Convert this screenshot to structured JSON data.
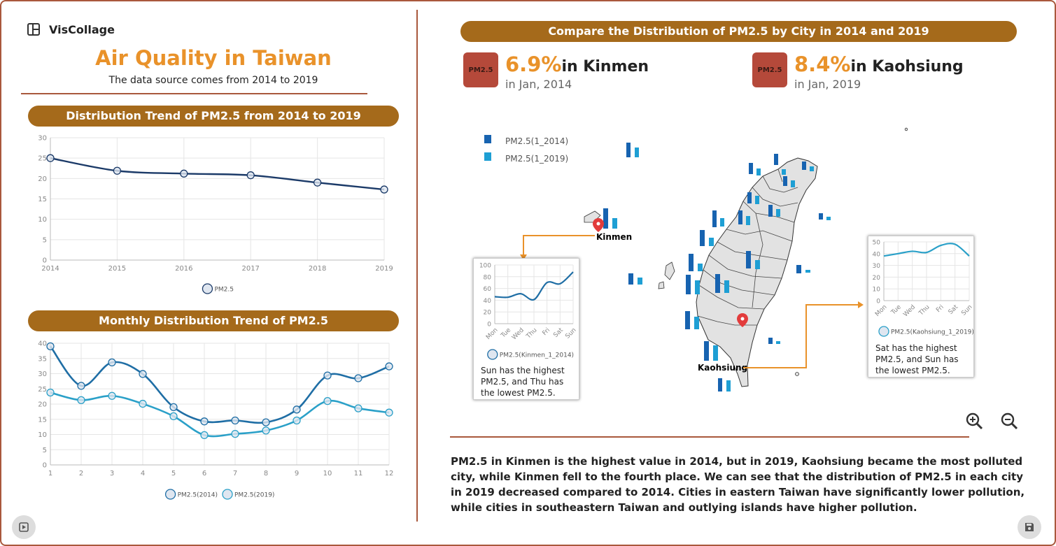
{
  "app": {
    "name": "VisCollage"
  },
  "header": {
    "title": "Air Quality in Taiwan",
    "subtitle": "The data source comes from 2014 to 2019"
  },
  "panels": {
    "trend_title": "Distribution Trend of PM2.5 from 2014 to 2019",
    "monthly_title": "Monthly Distribution Trend of PM2.5",
    "compare_title": "Compare the Distribution of PM2.5 by City in 2014 and 2019"
  },
  "chart_data": [
    {
      "type": "line",
      "x": [
        "2014",
        "2015",
        "2016",
        "2017",
        "2018",
        "2019"
      ],
      "series": [
        {
          "name": "PM2.5",
          "values": [
            25.0,
            21.9,
            21.2,
            20.8,
            19.0,
            17.3
          ],
          "color": "#1b3a68"
        }
      ],
      "ylim": [
        0,
        30
      ],
      "yticks": [
        "0",
        "5",
        "10",
        "15",
        "20",
        "25",
        "30"
      ],
      "grid": true,
      "legend": "bottom"
    },
    {
      "type": "line",
      "x": [
        "1",
        "2",
        "3",
        "4",
        "5",
        "6",
        "7",
        "8",
        "9",
        "10",
        "11",
        "12"
      ],
      "series": [
        {
          "name": "PM2.5(2014)",
          "values": [
            39.0,
            26.0,
            33.7,
            29.9,
            19.0,
            14.3,
            14.6,
            14.0,
            18.2,
            29.4,
            28.5,
            32.4
          ],
          "color": "#1f6ea5"
        },
        {
          "name": "PM2.5(2019)",
          "values": [
            23.8,
            21.3,
            22.7,
            20.1,
            16.0,
            9.8,
            10.2,
            11.3,
            14.6,
            21.0,
            18.6,
            17.2
          ],
          "color": "#2aa0c8"
        }
      ],
      "ylim": [
        0,
        40
      ],
      "yticks": [
        "0",
        "5",
        "10",
        "15",
        "20",
        "25",
        "30",
        "35",
        "40"
      ],
      "grid": true,
      "legend": "bottom"
    },
    {
      "type": "line",
      "x": [
        "Mon",
        "Tue",
        "Wed",
        "Thu",
        "Fri",
        "Sat",
        "Sun"
      ],
      "series": [
        {
          "name": "PM2.5(Kinmen_1_2014)",
          "values": [
            46,
            45,
            51,
            41,
            70,
            68,
            88
          ],
          "color": "#1f6ea5"
        }
      ],
      "ylim": [
        0,
        100
      ],
      "yticks": [
        "0",
        "20",
        "40",
        "60",
        "80",
        "100"
      ],
      "grid": true,
      "legend": "bottom"
    },
    {
      "type": "line",
      "x": [
        "Mon",
        "Tue",
        "Wed",
        "Thu",
        "Fri",
        "Sat",
        "Sun"
      ],
      "series": [
        {
          "name": "PM2.5(Kaohsiung_1_2019)",
          "values": [
            38,
            40,
            42,
            41,
            47,
            48,
            38
          ],
          "color": "#2aa0c8"
        }
      ],
      "ylim": [
        0,
        50
      ],
      "yticks": [
        "0",
        "10",
        "20",
        "30",
        "40",
        "50"
      ],
      "grid": true,
      "legend": "bottom"
    },
    {
      "type": "bar",
      "series": [
        {
          "name": "PM2.5(1_2014)",
          "color": "#1763b0"
        },
        {
          "name": "PM2.5(1_2019)",
          "color": "#1e9fd4"
        }
      ],
      "legend": "top-left"
    }
  ],
  "stats": [
    {
      "value": "6.9%",
      "city": "in Kinmen",
      "when": "in Jan, 2014",
      "icon": "pm25-icon",
      "icon_label": "PM2.5"
    },
    {
      "value": "8.4%",
      "city": "in Kaohsiung",
      "when": "in Jan, 2019",
      "icon": "pm25-icon",
      "icon_label": "PM2.5"
    }
  ],
  "map": {
    "markers": [
      "Kinmen",
      "Kaohsiung"
    ],
    "notes": {
      "kinmen": [
        "Sun has the highest",
        "PM2.5, and Thu has",
        "the lowest PM2.5."
      ],
      "kaohsiung": [
        "Sat has the highest",
        "PM2.5, and Sun has",
        "the lowest PM2.5."
      ]
    },
    "accent": "#e9922a"
  },
  "summary": "PM2.5 in Kinmen is the highest value in 2014, but in 2019, Kaohsiung became the most polluted city, while Kinmen fell to the fourth place. We can see that the distribution of PM2.5 in each city in 2019 decreased compared to 2014. Cities in eastern Taiwan have significantly lower pollution, while cities in southeastern Taiwan and outlying islands have higher pollution.",
  "colors": {
    "frame": "#a9583c",
    "pill": "#a56a1b",
    "accent": "#e9922a"
  }
}
